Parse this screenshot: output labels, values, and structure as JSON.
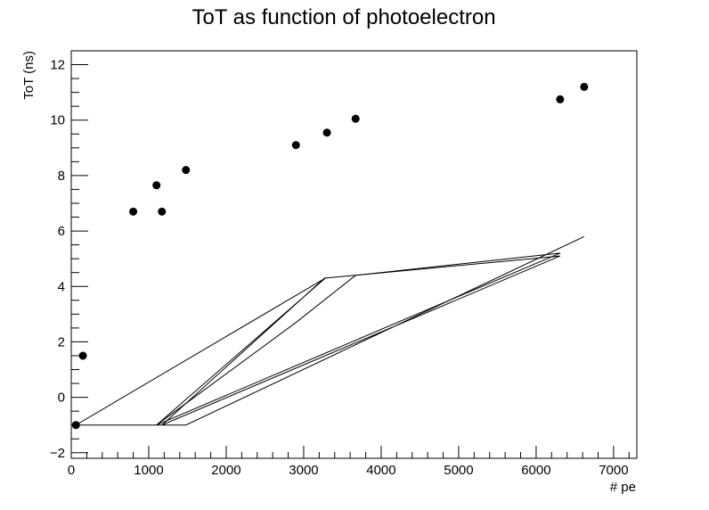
{
  "chart_data": {
    "type": "scatter",
    "title": "ToT as function of photoelectron",
    "xlabel": "# pe",
    "ylabel": "ToT (ns)",
    "xlim": [
      0,
      7300
    ],
    "ylim": [
      -2.2,
      12.5
    ],
    "x_ticks": [
      0,
      1000,
      2000,
      3000,
      4000,
      5000,
      6000,
      7000
    ],
    "x_tick_labels": [
      "0",
      "1000",
      "2000",
      "3000",
      "4000",
      "5000",
      "6000",
      "7000"
    ],
    "y_ticks": [
      -2,
      0,
      2,
      4,
      6,
      8,
      10,
      12
    ],
    "y_tick_labels": [
      "−2",
      "0",
      "2",
      "4",
      "6",
      "8",
      "10",
      "12"
    ],
    "grid": false,
    "legend": "none",
    "series": [
      {
        "style": "markers",
        "color": "#000000",
        "x": [
          60,
          150,
          800,
          1100,
          1170,
          1480,
          2900,
          3300,
          3670,
          6310,
          6620
        ],
        "y": [
          -1.0,
          1.5,
          6.7,
          7.65,
          6.7,
          8.2,
          9.1,
          9.55,
          10.05,
          10.75,
          11.2
        ]
      },
      {
        "style": "line",
        "color": "#000000",
        "x": [
          60,
          1100,
          3280,
          60,
          1170,
          3270,
          3670,
          6310,
          1170,
          60,
          1480,
          6620
        ],
        "y": [
          -1.0,
          -1.0,
          4.3,
          -1.0,
          -1.0,
          4.3,
          4.4,
          5.1,
          -1.0,
          -1.0,
          -1.0,
          5.8
        ]
      },
      {
        "style": "line",
        "color": "#000000",
        "x": [
          1100,
          2900,
          3670,
          6310,
          1100
        ],
        "y": [
          -1.0,
          2.7,
          4.4,
          5.2,
          -1.0
        ]
      }
    ]
  }
}
